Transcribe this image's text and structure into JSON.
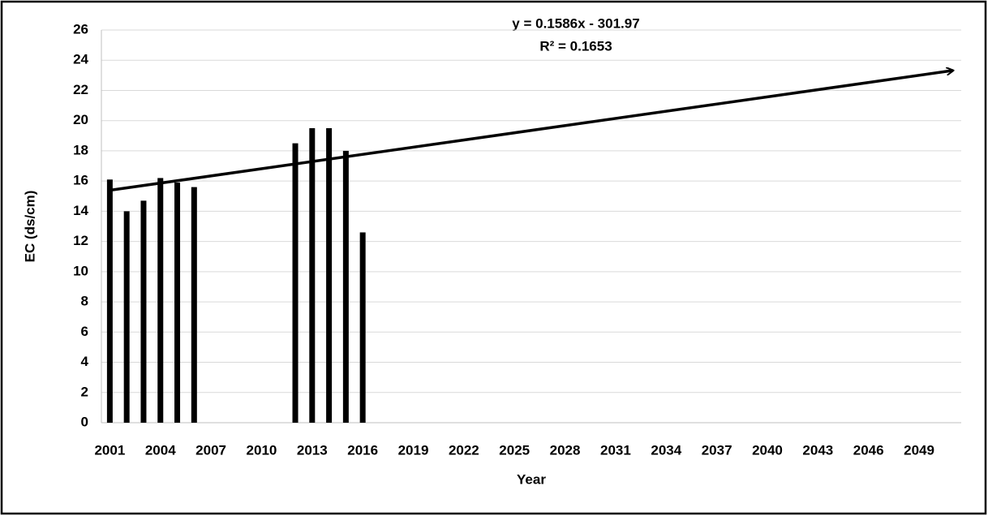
{
  "chart_data": {
    "type": "bar",
    "x": [
      2001,
      2002,
      2003,
      2004,
      2005,
      2006,
      2012,
      2013,
      2014,
      2015,
      2016
    ],
    "values": [
      16.1,
      14.0,
      14.7,
      16.2,
      15.9,
      15.6,
      18.5,
      19.5,
      19.5,
      18.0,
      12.6
    ],
    "color": "#000000",
    "xlim": [
      2000.5,
      2051.5
    ],
    "xticks": [
      2001,
      2004,
      2007,
      2010,
      2013,
      2016,
      2019,
      2022,
      2025,
      2028,
      2031,
      2034,
      2037,
      2040,
      2043,
      2046,
      2049
    ],
    "ylim": [
      0,
      26
    ],
    "yticks": [
      0,
      2,
      4,
      6,
      8,
      10,
      12,
      14,
      16,
      18,
      20,
      22,
      24,
      26
    ],
    "grid": true,
    "x_label": "Year",
    "y_label": "EC (ds/cm)",
    "trendline": {
      "slope": 0.1586,
      "intercept": -301.97,
      "x": [
        2001,
        2051
      ],
      "equation": "y = 0.1586x - 301.97",
      "r_squared": "R² = 0.1653"
    }
  }
}
